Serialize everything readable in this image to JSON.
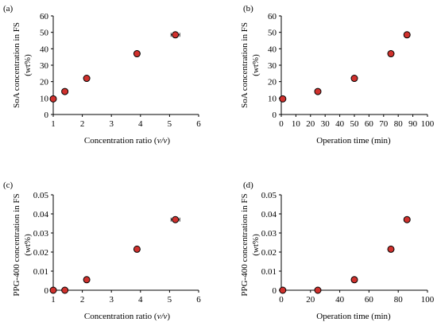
{
  "chart_data": [
    {
      "type": "scatter",
      "panel_label": "(a)",
      "title": "",
      "xlabel_parts": [
        "Concentration ratio (",
        "v/v",
        ")"
      ],
      "ylabel": "SoA concentration in FS",
      "ylabel2": "(wt%)",
      "xlim": [
        1,
        6
      ],
      "ylim": [
        0,
        60
      ],
      "xticks": [
        "1",
        "2",
        "3",
        "4",
        "5",
        "6"
      ],
      "yticks": [
        "0",
        "10",
        "20",
        "30",
        "40",
        "50",
        "60"
      ],
      "grid": false,
      "marker_color": "#d0312d",
      "points": [
        {
          "x": 1.0,
          "y": 9.5
        },
        {
          "x": 1.4,
          "y": 14.0
        },
        {
          "x": 2.15,
          "y": 22.0
        },
        {
          "x": 3.88,
          "y": 37.0,
          "xerr": 0.05
        },
        {
          "x": 5.2,
          "y": 48.5,
          "xerr": 0.15
        }
      ]
    },
    {
      "type": "scatter",
      "panel_label": "(b)",
      "title": "",
      "xlabel_parts": [
        "Operation time (min)",
        "",
        ""
      ],
      "ylabel": "SoA concentration in FS",
      "ylabel2": "(wt%)",
      "xlim": [
        0,
        100
      ],
      "ylim": [
        0,
        60
      ],
      "xticks": [
        "0",
        "10",
        "20",
        "30",
        "40",
        "50",
        "60",
        "70",
        "80",
        "90",
        "100"
      ],
      "yticks": [
        "0",
        "10",
        "20",
        "30",
        "40",
        "50",
        "60"
      ],
      "grid": false,
      "marker_color": "#d0312d",
      "points": [
        {
          "x": 1,
          "y": 9.5
        },
        {
          "x": 25,
          "y": 14.0
        },
        {
          "x": 50,
          "y": 22.0
        },
        {
          "x": 75,
          "y": 37.0
        },
        {
          "x": 86,
          "y": 48.5
        }
      ]
    },
    {
      "type": "scatter",
      "panel_label": "(c)",
      "title": "",
      "xlabel_parts": [
        "Concentration ratio (",
        "v/v",
        ")"
      ],
      "ylabel": "PPG-400 concentration in FS",
      "ylabel2": "(wt%)",
      "xlim": [
        1,
        6
      ],
      "ylim": [
        0,
        0.05
      ],
      "xticks": [
        "1",
        "2",
        "3",
        "4",
        "5",
        "6"
      ],
      "yticks": [
        "0",
        "0.01",
        "0.02",
        "0.03",
        "0.04",
        "0.05"
      ],
      "grid": false,
      "marker_color": "#d0312d",
      "points": [
        {
          "x": 1.0,
          "y": 0.0
        },
        {
          "x": 1.4,
          "y": 0.0
        },
        {
          "x": 2.15,
          "y": 0.0055
        },
        {
          "x": 3.88,
          "y": 0.0215
        },
        {
          "x": 5.2,
          "y": 0.037,
          "xerr": 0.15
        }
      ]
    },
    {
      "type": "scatter",
      "panel_label": "(d)",
      "title": "",
      "xlabel_parts": [
        "Operation time (min)",
        "",
        ""
      ],
      "ylabel": "PPG-400 concentration in FS",
      "ylabel2": "(wt%)",
      "xlim": [
        0,
        100
      ],
      "ylim": [
        0,
        0.05
      ],
      "xticks": [
        "0",
        "20",
        "40",
        "60",
        "80",
        "100"
      ],
      "yticks": [
        "0",
        "0.01",
        "0.02",
        "0.03",
        "0.04",
        "0.05"
      ],
      "grid": false,
      "marker_color": "#d0312d",
      "points": [
        {
          "x": 1,
          "y": 0.0
        },
        {
          "x": 25,
          "y": 0.0
        },
        {
          "x": 50,
          "y": 0.0055
        },
        {
          "x": 75,
          "y": 0.0215
        },
        {
          "x": 86,
          "y": 0.037
        }
      ]
    }
  ]
}
